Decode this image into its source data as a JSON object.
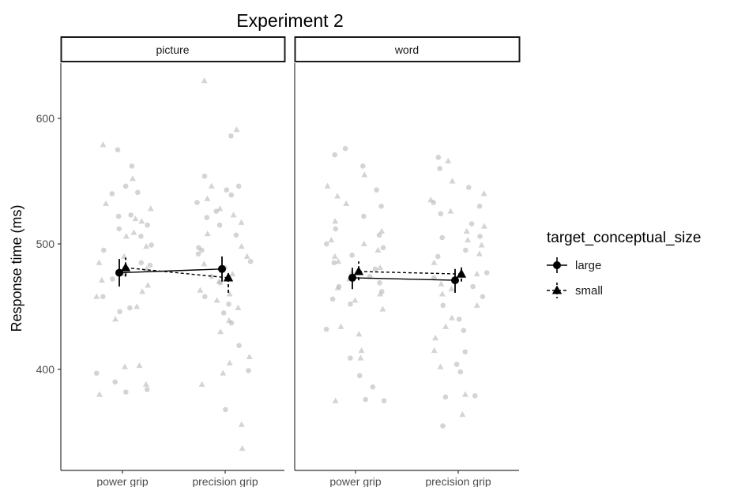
{
  "chart_data": {
    "type": "scatter",
    "title": "Experiment 2",
    "xlabel": "",
    "ylabel": "Response time (ms)",
    "categories": [
      "power grip",
      "precision grip"
    ],
    "ylim": [
      330,
      645
    ],
    "yticks": [
      400,
      500,
      600
    ],
    "grid": false,
    "legend": {
      "title": "target_conceptual_size",
      "placement": "right",
      "entries": [
        {
          "label": "large",
          "marker": "circle",
          "line": "solid"
        },
        {
          "label": "small",
          "marker": "triangle",
          "line": "dashed"
        }
      ]
    },
    "colors": {
      "raw_points": "#b8b8b8",
      "summary": "#000000"
    },
    "panels": [
      {
        "facet": "picture",
        "summary": [
          {
            "series": "large",
            "values": [
              477,
              480
            ],
            "error": [
              [
                466,
                488
              ],
              [
                470,
                490
              ]
            ]
          },
          {
            "series": "small",
            "values": [
              481,
              473
            ],
            "error": [
              [
                474,
                489
              ],
              [
                461,
                478
              ]
            ]
          }
        ],
        "raw": [
          {
            "category": "power grip",
            "series": "large",
            "values": [
              384,
              397,
              382,
              390,
              446,
              449,
              458,
              472,
              476,
              483,
              485,
              495,
              499,
              506,
              512,
              515,
              522,
              523,
              540,
              541,
              546,
              562,
              575
            ]
          },
          {
            "category": "power grip",
            "series": "small",
            "values": [
              380,
              388,
              402,
              403,
              440,
              450,
              458,
              462,
              467,
              471,
              480,
              485,
              490,
              498,
              506,
              509,
              518,
              520,
              528,
              532,
              552,
              579
            ]
          },
          {
            "category": "precision grip",
            "series": "large",
            "values": [
              368,
              399,
              419,
              437,
              445,
              452,
              458,
              469,
              474,
              481,
              486,
              492,
              495,
              497,
              507,
              515,
              521,
              526,
              533,
              539,
              543,
              546,
              554,
              586
            ]
          },
          {
            "category": "precision grip",
            "series": "small",
            "values": [
              337,
              356,
              388,
              397,
              405,
              410,
              430,
              439,
              449,
              455,
              460,
              463,
              470,
              476,
              484,
              490,
              498,
              508,
              517,
              523,
              528,
              536,
              546,
              591,
              630
            ]
          }
        ]
      },
      {
        "facet": "word",
        "summary": [
          {
            "series": "large",
            "values": [
              473,
              471
            ],
            "error": [
              [
                464,
                481
              ],
              [
                461,
                480
              ]
            ]
          },
          {
            "series": "small",
            "values": [
              478,
              476
            ],
            "error": [
              [
                471,
                486
              ],
              [
                470,
                483
              ]
            ]
          }
        ],
        "raw": [
          {
            "category": "power grip",
            "series": "large",
            "values": [
              375,
              376,
              386,
              395,
              409,
              432,
              452,
              456,
              462,
              466,
              469,
              474,
              480,
              485,
              491,
              497,
              500,
              507,
              512,
              522,
              530,
              543,
              562,
              571,
              576
            ]
          },
          {
            "category": "power grip",
            "series": "small",
            "values": [
              375,
              409,
              415,
              428,
              434,
              448,
              455,
              460,
              465,
              472,
              477,
              481,
              486,
              490,
              495,
              500,
              503,
              510,
              518,
              532,
              538,
              546,
              555
            ]
          },
          {
            "category": "precision grip",
            "series": "large",
            "values": [
              355,
              378,
              379,
              398,
              404,
              414,
              431,
              440,
              451,
              458,
              466,
              473,
              477,
              490,
              495,
              505,
              506,
              516,
              524,
              530,
              533,
              545,
              560,
              569
            ]
          },
          {
            "category": "precision grip",
            "series": "small",
            "values": [
              364,
              380,
              402,
              415,
              425,
              434,
              441,
              451,
              460,
              464,
              468,
              476,
              485,
              492,
              499,
              503,
              510,
              514,
              526,
              535,
              540,
              550,
              566
            ]
          }
        ]
      }
    ]
  }
}
